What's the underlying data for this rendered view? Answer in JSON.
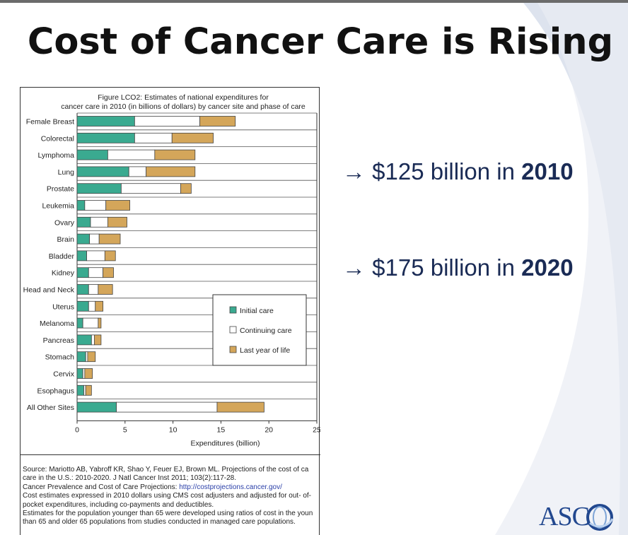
{
  "slide": {
    "title": "Cost of Cancer Care is Rising",
    "bullets": [
      {
        "arrow": "→",
        "text": "$125 billion in ",
        "year": "2010"
      },
      {
        "arrow": "→",
        "text": "$175 billion in ",
        "year": "2020"
      }
    ],
    "logo_text": "ASC",
    "logo_icon": "globe-icon",
    "colors": {
      "bullet_text": "#1a2b55",
      "logo": "#22488f"
    }
  },
  "figure": {
    "title_line1": "Figure LCO2: Estimates of national expenditures for",
    "title_line2": "cancer care in 2010 (in billions of dollars) by cancer site and phase of care",
    "source_lines": [
      {
        "text": "Source: Mariotto AB, Yabroff KR, Shao Y, Feuer EJ, Brown ML.  Projections of the cost of ca",
        "link": ""
      },
      {
        "text": "care in the U.S.: 2010-2020.  J Natl Cancer Inst 2011; 103(2):117-28.",
        "link": ""
      },
      {
        "text": "Cancer Prevalence and Cost of Care Projections: ",
        "link": "http://costprojections.cancer.gov/"
      },
      {
        "text": "Cost estimates expressed in 2010 dollars using CMS cost adjusters and adjusted for out- of-",
        "link": ""
      },
      {
        "text": "pocket expenditures, including co-payments and deductibles.",
        "link": ""
      },
      {
        "text": "Estimates for the population younger than 65 were developed using ratios of cost in the youn",
        "link": ""
      },
      {
        "text": "than 65 and older 65 populations from studies conducted in managed care populations.",
        "link": ""
      }
    ]
  },
  "chart_data": {
    "type": "bar",
    "orientation": "horizontal",
    "stacked": true,
    "title": "Figure LCO2: Estimates of national expenditures for cancer care in 2010 (in billions of dollars) by cancer site and phase of care",
    "xlabel": "Expenditures (billion)",
    "ylabel": "",
    "xlim": [
      0,
      25
    ],
    "xticks": [
      "0",
      "5",
      "10",
      "15",
      "20",
      "25"
    ],
    "categories": [
      "Female Breast",
      "Colorectal",
      "Lymphoma",
      "Lung",
      "Prostate",
      "Leukemia",
      "Ovary",
      "Brain",
      "Bladder",
      "Kidney",
      "Head and Neck",
      "Uterus",
      "Melanoma",
      "Pancreas",
      "Stomach",
      "Cervix",
      "Esophagus",
      "All Other Sites"
    ],
    "series": [
      {
        "name": "Initial care",
        "color": "#3aaa90",
        "values": [
          6.0,
          6.0,
          3.2,
          5.4,
          4.6,
          0.8,
          1.4,
          1.3,
          1.0,
          1.2,
          1.2,
          1.2,
          0.6,
          1.5,
          0.9,
          0.6,
          0.7,
          4.1
        ]
      },
      {
        "name": "Continuing care",
        "color": "#ffffff",
        "values": [
          6.8,
          3.9,
          4.9,
          1.8,
          6.2,
          2.2,
          1.8,
          1.0,
          1.9,
          1.5,
          1.0,
          0.7,
          1.6,
          0.3,
          0.2,
          0.2,
          0.2,
          10.5
        ]
      },
      {
        "name": "Last year of life",
        "color": "#d4a65a",
        "values": [
          3.7,
          4.3,
          4.2,
          5.1,
          1.1,
          2.5,
          2.0,
          2.2,
          1.1,
          1.1,
          1.5,
          0.8,
          0.3,
          0.7,
          0.8,
          0.8,
          0.6,
          4.9
        ]
      }
    ],
    "legend_position": "right",
    "grid": "horizontal"
  }
}
